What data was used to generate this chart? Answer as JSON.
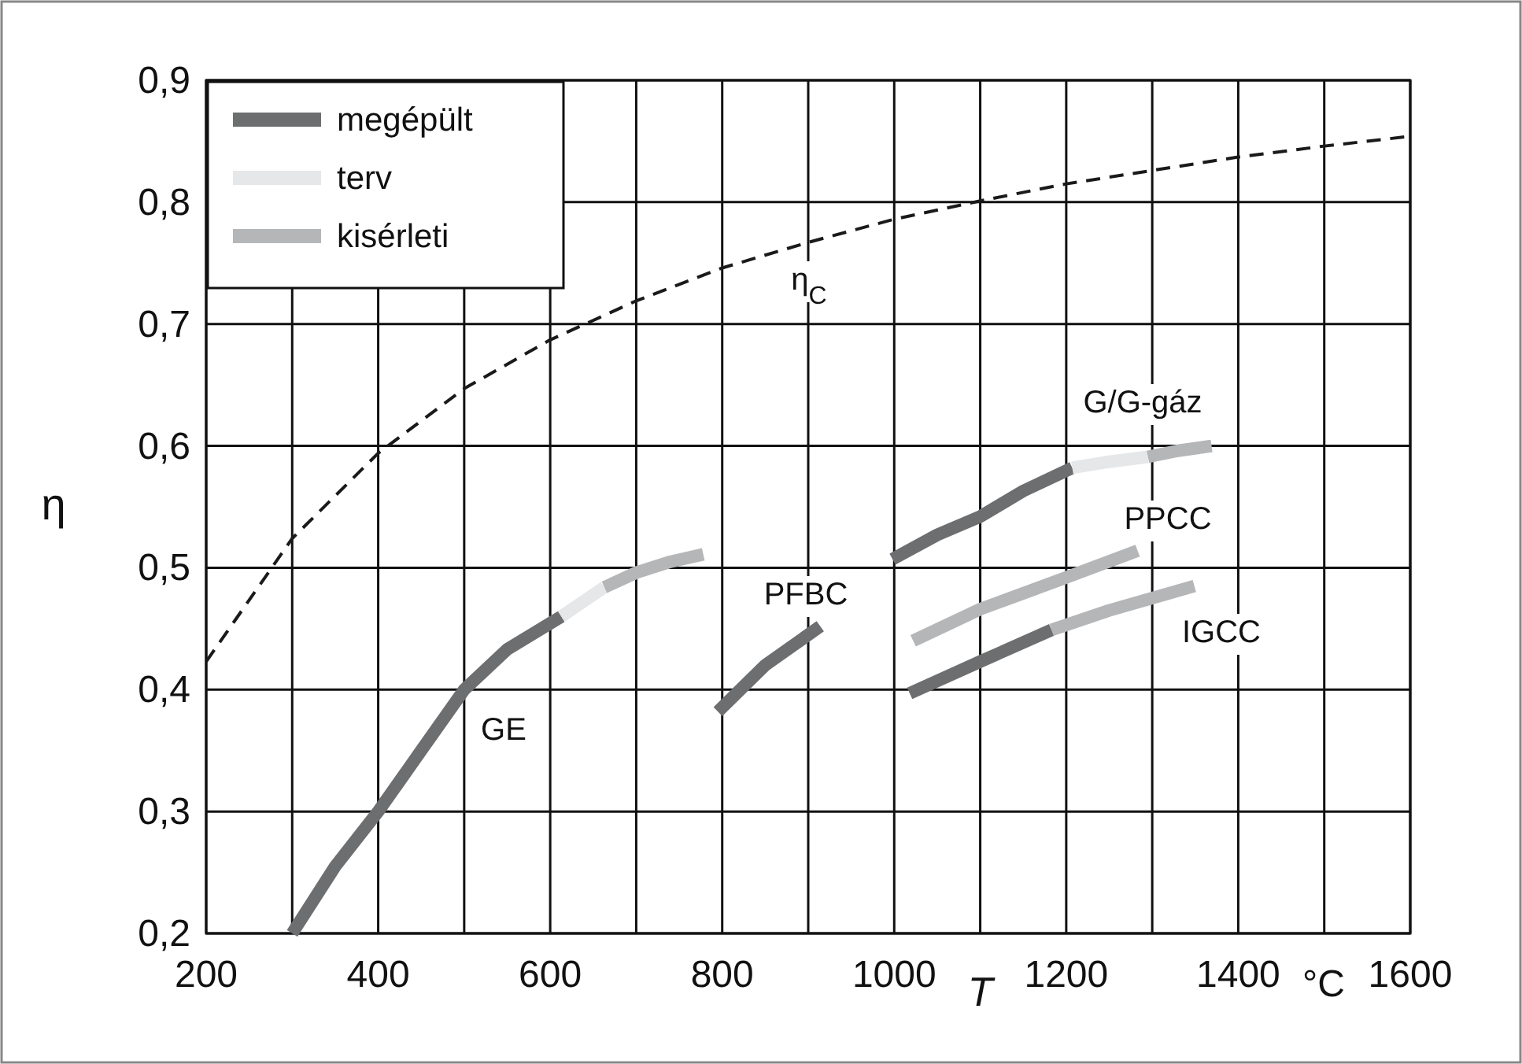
{
  "chart_data": {
    "type": "line",
    "xlabel": "T",
    "ylabel": "η",
    "xlim": [
      200,
      1600
    ],
    "ylim": [
      0.2,
      0.9
    ],
    "xticks": [
      200,
      {
        "value": 300,
        "label": null
      },
      400,
      {
        "value": 500,
        "label": null
      },
      600,
      {
        "value": 700,
        "label": null
      },
      800,
      {
        "value": 900,
        "label": null
      },
      1000,
      {
        "value": 1100,
        "label": null
      },
      1200,
      {
        "value": 1300,
        "label": null
      },
      1400,
      {
        "value": 1500,
        "label": null
      },
      1600
    ],
    "yticks": [
      {
        "value": 0.2,
        "label": "0,2"
      },
      {
        "value": 0.3,
        "label": "0,3"
      },
      {
        "value": 0.4,
        "label": "0,4"
      },
      {
        "value": 0.5,
        "label": "0,5"
      },
      {
        "value": 0.6,
        "label": "0,6"
      },
      {
        "value": 0.7,
        "label": "0,7"
      },
      {
        "value": 0.8,
        "label": "0,8"
      },
      {
        "value": 0.9,
        "label": "0,9"
      }
    ],
    "grid": true,
    "legend": "top left",
    "marker": "none",
    "series": [
      {
        "name": "megépült",
        "color": "#6d6e70",
        "x": [
          300,
          350,
          400,
          450,
          500,
          550,
          613
        ],
        "values": [
          0.2,
          0.255,
          0.3,
          0.35,
          0.4,
          0.433,
          0.46
        ]
      },
      {
        "name": "terv",
        "color": "#e6e7e8",
        "x": [
          613,
          640,
          663
        ],
        "values": [
          0.46,
          0.473,
          0.484
        ]
      },
      {
        "name": "kisérleti",
        "color": "#b5b6b8",
        "x": [
          663,
          700,
          740,
          778
        ],
        "values": [
          0.484,
          0.496,
          0.505,
          0.511
        ]
      },
      {
        "color": "#6d6e70",
        "x": [
          795,
          850,
          914
        ],
        "values": [
          0.382,
          0.42,
          0.452
        ]
      },
      {
        "color": "#6d6e70",
        "x": [
          998,
          1050,
          1100,
          1150,
          1207
        ],
        "values": [
          0.507,
          0.527,
          0.542,
          0.563,
          0.582
        ]
      },
      {
        "color": "#e6e7e8",
        "x": [
          1207,
          1250,
          1295
        ],
        "values": [
          0.582,
          0.587,
          0.591
        ]
      },
      {
        "color": "#b5b6b8",
        "x": [
          1295,
          1330,
          1369
        ],
        "values": [
          0.591,
          0.596,
          0.6
        ]
      },
      {
        "color": "#b5b6b8",
        "x": [
          1022,
          1100,
          1200,
          1283
        ],
        "values": [
          0.44,
          0.466,
          0.492,
          0.514
        ]
      },
      {
        "color": "#6d6e70",
        "x": [
          1018,
          1100,
          1183
        ],
        "values": [
          0.397,
          0.423,
          0.449
        ]
      },
      {
        "color": "#b5b6b8",
        "x": [
          1183,
          1250,
          1349
        ],
        "values": [
          0.449,
          0.465,
          0.485
        ]
      },
      {
        "color": "#1a1a1a",
        "line_style": "dashed",
        "x": [
          200,
          300,
          400,
          500,
          600,
          700,
          800,
          900,
          1000,
          1100,
          1200,
          1300,
          1400,
          1500,
          1600
        ],
        "values": [
          0.423,
          0.524,
          0.594,
          0.647,
          0.687,
          0.719,
          0.746,
          0.767,
          0.786,
          0.801,
          0.815,
          0.826,
          0.837,
          0.846,
          0.854
        ]
      }
    ],
    "annotations": [
      "GE",
      "PFBC",
      "G/G-gáz",
      "PPCC",
      "IGCC",
      "η$_{C}$",
      "°C"
    ]
  }
}
